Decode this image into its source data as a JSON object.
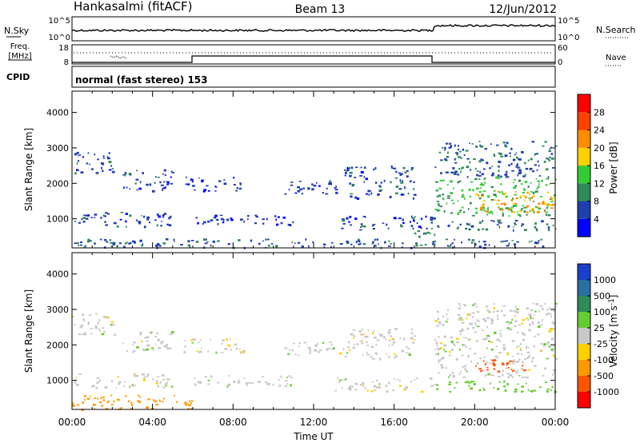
{
  "header": {
    "radar": "Hankasalmi (fitACF)",
    "beam": "Beam 13",
    "date": "12/Jun/2012"
  },
  "status_panels": {
    "nsky_label": "N.Sky",
    "nsky_ticks": [
      "10^5",
      "10^0"
    ],
    "nsearch_label": "N.Search",
    "nsearch_ticks": [
      "10^5",
      "10^0"
    ],
    "freq_label_line1": "Freq.",
    "freq_label_line2": "[MHz]",
    "freq_ticks": [
      "18",
      "8"
    ],
    "nave_label": "Nave",
    "nave_ticks": [
      "60",
      "0"
    ],
    "cpid_label": "CPID",
    "cpid_text": "normal (fast stereo) 153"
  },
  "axes": {
    "time_ticks": [
      "00:00",
      "04:00",
      "08:00",
      "12:00",
      "16:00",
      "20:00",
      "00:00"
    ],
    "xlabel": "Time UT",
    "ylabel": "Slant Range [km]",
    "range_ticks": [
      "1000",
      "2000",
      "3000",
      "4000"
    ]
  },
  "colorbars": {
    "power": {
      "label": "Power [dB]",
      "ticks": [
        "4",
        "8",
        "12",
        "16",
        "20",
        "24",
        "28"
      ],
      "colors": [
        "#0000ff",
        "#1f3faf",
        "#2e8b57",
        "#32cd32",
        "#ffd000",
        "#ff8c00",
        "#ff4000",
        "#ff0000"
      ]
    },
    "velocity": {
      "label": "Velocity [m s",
      "label_sup": "-1",
      "label_end": "]",
      "ticks": [
        "1000",
        "500",
        "100",
        "25",
        "-25",
        "-100",
        "-500",
        "-1000"
      ],
      "colors": [
        "#1a3fc8",
        "#2a6fa0",
        "#2e8b57",
        "#66cc33",
        "#c8c8c8",
        "#ffd000",
        "#ff9900",
        "#ff5500",
        "#ff0000"
      ]
    }
  },
  "chart_data": [
    {
      "type": "heatmap",
      "title": "Power",
      "xlabel": "Time UT",
      "ylabel": "Slant Range [km]",
      "x_range_hours": [
        0,
        24
      ],
      "y_range_km": [
        180,
        4600
      ],
      "colorbar_label": "Power [dB]",
      "colorbar_ticks": [
        4,
        8,
        12,
        16,
        20,
        24,
        28
      ],
      "regions": [
        {
          "t0": 0.0,
          "t1": 2.2,
          "r0": 2300,
          "r1": 2900,
          "v": 6
        },
        {
          "t0": 0.0,
          "t1": 5.0,
          "r0": 800,
          "r1": 1200,
          "v": 6
        },
        {
          "t0": 0.0,
          "t1": 24.0,
          "r0": 200,
          "r1": 450,
          "v": 7
        },
        {
          "t0": 2.5,
          "t1": 5.0,
          "r0": 1800,
          "r1": 2400,
          "v": 6
        },
        {
          "t0": 5.5,
          "t1": 8.5,
          "r0": 1800,
          "r1": 2200,
          "v": 5
        },
        {
          "t0": 6.0,
          "t1": 11.0,
          "r0": 850,
          "r1": 1150,
          "v": 5
        },
        {
          "t0": 10.5,
          "t1": 13.5,
          "r0": 1700,
          "r1": 2100,
          "v": 5
        },
        {
          "t0": 13.5,
          "t1": 17.0,
          "r0": 1600,
          "r1": 2500,
          "v": 6
        },
        {
          "t0": 13.0,
          "t1": 18.0,
          "r0": 700,
          "r1": 1100,
          "v": 6
        },
        {
          "t0": 17.0,
          "t1": 18.0,
          "r0": 300,
          "r1": 800,
          "v": 10
        },
        {
          "t0": 18.0,
          "t1": 24.0,
          "r0": 2200,
          "r1": 3200,
          "v": 7
        },
        {
          "t0": 18.0,
          "t1": 24.0,
          "r0": 1100,
          "r1": 2200,
          "v": 13
        },
        {
          "t0": 20.0,
          "t1": 24.0,
          "r0": 1200,
          "r1": 1800,
          "v": 21
        },
        {
          "t0": 18.0,
          "t1": 24.0,
          "r0": 700,
          "r1": 1000,
          "v": 8
        }
      ]
    },
    {
      "type": "heatmap",
      "title": "Velocity",
      "xlabel": "Time UT",
      "ylabel": "Slant Range [km]",
      "x_range_hours": [
        0,
        24
      ],
      "y_range_km": [
        180,
        4600
      ],
      "colorbar_label": "Velocity [m s-1]",
      "colorbar_ticks": [
        1000,
        500,
        100,
        25,
        -25,
        -100,
        -500,
        -1000
      ],
      "regions": [
        {
          "t0": 0.0,
          "t1": 2.2,
          "r0": 2300,
          "r1": 2900,
          "v": 0
        },
        {
          "t0": 0.0,
          "t1": 5.0,
          "r0": 800,
          "r1": 1200,
          "v": 0
        },
        {
          "t0": 0.0,
          "t1": 6.0,
          "r0": 200,
          "r1": 600,
          "v": -200
        },
        {
          "t0": 2.5,
          "t1": 5.0,
          "r0": 1800,
          "r1": 2400,
          "v": 0
        },
        {
          "t0": 5.5,
          "t1": 8.5,
          "r0": 1800,
          "r1": 2200,
          "v": 0
        },
        {
          "t0": 6.0,
          "t1": 11.0,
          "r0": 850,
          "r1": 1150,
          "v": 0
        },
        {
          "t0": 10.5,
          "t1": 13.5,
          "r0": 1700,
          "r1": 2100,
          "v": 0
        },
        {
          "t0": 13.5,
          "t1": 17.0,
          "r0": 1600,
          "r1": 2500,
          "v": 0
        },
        {
          "t0": 13.0,
          "t1": 18.0,
          "r0": 700,
          "r1": 1100,
          "v": 0
        },
        {
          "t0": 18.0,
          "t1": 24.0,
          "r0": 2200,
          "r1": 3200,
          "v": 0
        },
        {
          "t0": 18.0,
          "t1": 24.0,
          "r0": 1100,
          "r1": 2200,
          "v": 0
        },
        {
          "t0": 20.0,
          "t1": 22.5,
          "r0": 1200,
          "r1": 1600,
          "v": -600
        },
        {
          "t0": 18.0,
          "t1": 24.0,
          "r0": 700,
          "r1": 1000,
          "v": 60
        }
      ]
    }
  ]
}
